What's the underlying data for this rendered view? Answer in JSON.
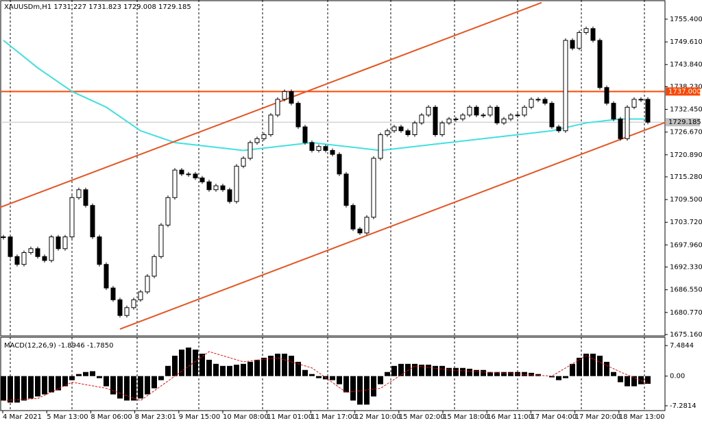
{
  "chart_data": {
    "type": "candlestick",
    "title": "XAUUSDm,H1  1731.227 1731.823 1729.008 1729.185",
    "close": [
      1700,
      1695,
      1693,
      1696,
      1697,
      1695,
      1694,
      1700,
      1697,
      1700,
      1710,
      1712,
      1708,
      1700,
      1693,
      1687,
      1684,
      1680,
      1682,
      1684,
      1686,
      1690,
      1695,
      1703,
      1710,
      1717,
      1716,
      1716,
      1715,
      1714,
      1712,
      1713,
      1712,
      1709,
      1718,
      1720,
      1724,
      1725,
      1726,
      1731,
      1735,
      1737,
      1734,
      1728,
      1724,
      1722,
      1723,
      1722,
      1721,
      1716,
      1708,
      1702,
      1701,
      1705,
      1720,
      1726,
      1727,
      1728,
      1727,
      1726,
      1729,
      1731,
      1733,
      1726,
      1729,
      1730,
      1730,
      1731,
      1733,
      1731,
      1731,
      1733,
      1729,
      1730,
      1731,
      1731,
      1733,
      1735,
      1735,
      1734,
      1728,
      1727,
      1750,
      1748,
      1752,
      1753,
      1750,
      1738,
      1734,
      1730,
      1725,
      1733,
      1735,
      1735,
      1729.185
    ],
    "ma": {
      "x": [
        0,
        5,
        10,
        15,
        20,
        25,
        30,
        35,
        40,
        45,
        50,
        55,
        60,
        65,
        70,
        75,
        80,
        85,
        90,
        94
      ],
      "values": [
        1750,
        1743,
        1737,
        1733,
        1727,
        1724,
        1723,
        1722,
        1723,
        1724,
        1723,
        1722,
        1723,
        1724,
        1725,
        1726,
        1727,
        1729,
        1730,
        1730
      ],
      "color": "#40e0e0"
    },
    "ylim": [
      1674.81,
      1760.1
    ],
    "yticks": [
      {
        "value": 1755.4,
        "label": "1755.400"
      },
      {
        "value": 1749.61,
        "label": "1749.610"
      },
      {
        "value": 1743.84,
        "label": "1743.840"
      },
      {
        "value": 1738.23,
        "label": "1738.230"
      },
      {
        "value": 1732.45,
        "label": "1732.450"
      },
      {
        "value": 1726.67,
        "label": "1726.670"
      },
      {
        "value": 1720.89,
        "label": "1720.890"
      },
      {
        "value": 1715.28,
        "label": "1715.280"
      },
      {
        "value": 1709.5,
        "label": "1709.500"
      },
      {
        "value": 1703.72,
        "label": "1703.720"
      },
      {
        "value": 1697.96,
        "label": "1697.960"
      },
      {
        "value": 1692.33,
        "label": "1692.330"
      },
      {
        "value": 1686.55,
        "label": "1686.550"
      },
      {
        "value": 1680.77,
        "label": "1680.770"
      },
      {
        "value": 1675.16,
        "label": "1675.160"
      }
    ],
    "levels": [
      {
        "value": 1737.0,
        "label": "1737.000",
        "color": "#ff4500"
      },
      {
        "value": 1729.185,
        "label": "1729.185",
        "color": "#c0c0c0"
      }
    ],
    "trendlines": [
      {
        "x": [
          -0.5,
          78.5
        ],
        "y": [
          1707.5,
          1759.6
        ],
        "color": "#e8531f"
      },
      {
        "x": [
          17,
          96.5
        ],
        "y": [
          1676.55,
          1729.1
        ],
        "color": "#e8531f"
      }
    ],
    "xlabels": [
      "4 Mar 2021",
      "5 Mar 13:00",
      "8 Mar 06:00",
      "8 Mar 23:01",
      "9 Mar 15:00",
      "10 Mar 08:00",
      "11 Mar 01:00",
      "11 Mar 17:00",
      "12 Mar 10:00",
      "15 Mar 02:00",
      "15 Mar 18:00",
      "16 Mar 11:00",
      "17 Mar 04:00",
      "17 Mar 20:00",
      "18 Mar 13:00"
    ],
    "macd": {
      "title": "MACD(12,26,9) -1.8946 -1.7850",
      "histogram": [
        -6,
        -6.5,
        -6.5,
        -6,
        -5.5,
        -5,
        -4.5,
        -4,
        -3.5,
        -2.5,
        -1,
        0.5,
        1,
        1.2,
        -0.5,
        -2.5,
        -4.5,
        -5.5,
        -6,
        -6,
        -5.5,
        -4.5,
        -3,
        -1,
        2.5,
        5,
        6.5,
        7,
        6.5,
        5.5,
        4,
        3,
        2.5,
        2.5,
        2.8,
        3,
        3.5,
        4,
        4.5,
        5,
        5.5,
        5.5,
        5,
        3.5,
        1.5,
        0.5,
        -0.5,
        -0.8,
        -1,
        -2,
        -4,
        -6,
        -7,
        -7,
        -5,
        -2,
        1,
        2.5,
        3,
        3,
        3,
        2.8,
        2.8,
        2.5,
        2.5,
        2,
        2,
        2,
        1.8,
        1.5,
        1.5,
        1,
        1,
        1,
        1,
        1,
        1,
        0.8,
        0.5,
        0,
        -0.3,
        -1,
        -0.5,
        3,
        4.5,
        5.5,
        5.5,
        5,
        3.5,
        1,
        -1.5,
        -2.5,
        -2.5,
        -2,
        -1.8946
      ],
      "signal": {
        "x": [
          0,
          5,
          10,
          15,
          20,
          25,
          30,
          35,
          40,
          45,
          50,
          55,
          60,
          65,
          70,
          75,
          80,
          85,
          90,
          94
        ],
        "values": [
          -6,
          -5.5,
          -1.5,
          -3,
          -6,
          0,
          6,
          3.5,
          4.5,
          2,
          -4,
          -3,
          2.5,
          1.5,
          1,
          0.5,
          0,
          5,
          1,
          -1.785
        ],
        "color": "#ff0000"
      },
      "ylim": [
        -8.47,
        9.53
      ],
      "yticks": [
        {
          "value": 7.4844,
          "label": "7.4844"
        },
        {
          "value": 0,
          "label": "0.00"
        },
        {
          "value": -7.2814,
          "label": "-7.2814"
        }
      ]
    }
  }
}
